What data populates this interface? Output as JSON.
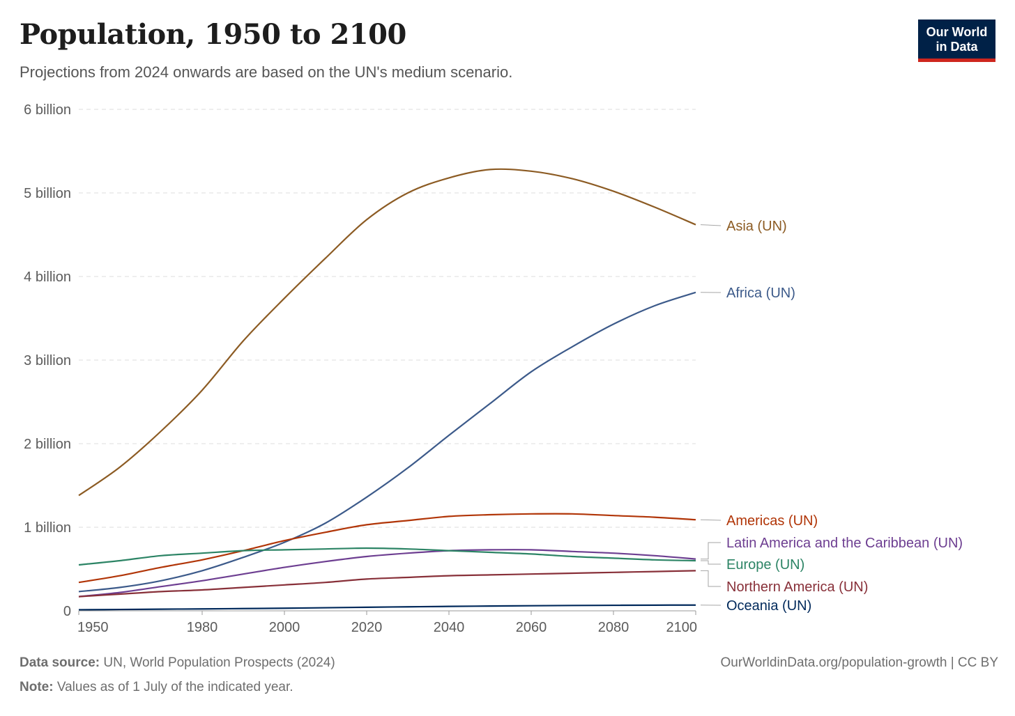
{
  "header": {
    "title": "Population, 1950 to 2100",
    "subtitle": "Projections from 2024 onwards are based on the UN's medium scenario.",
    "logo_line1": "Our World",
    "logo_line2": "in Data"
  },
  "footer": {
    "source_label": "Data source:",
    "source_text": "UN, World Population Prospects (2024)",
    "note_label": "Note:",
    "note_text": "Values as of 1 July of the indicated year.",
    "credit": "OurWorldinData.org/population-growth | CC BY"
  },
  "chart_data": {
    "type": "line",
    "title": "Population, 1950 to 2100",
    "subtitle": "Projections from 2024 onwards are based on the UN's medium scenario.",
    "xlim": [
      1950,
      2100
    ],
    "ylim": [
      0,
      6000000000
    ],
    "x_ticks": [
      1950,
      1980,
      2000,
      2020,
      2040,
      2060,
      2080,
      2100
    ],
    "x_tick_labels": [
      "1950",
      "1980",
      "2000",
      "2020",
      "2040",
      "2060",
      "2080",
      "2100"
    ],
    "y_ticks": [
      0,
      1000000000,
      2000000000,
      3000000000,
      4000000000,
      5000000000,
      6000000000
    ],
    "y_tick_labels": [
      "0",
      "1 billion",
      "2 billion",
      "3 billion",
      "4 billion",
      "5 billion",
      "6 billion"
    ],
    "grid": "horizontal dashed",
    "legend": "right-side line labels",
    "x": [
      1950,
      1960,
      1970,
      1980,
      1990,
      2000,
      2010,
      2020,
      2030,
      2040,
      2050,
      2060,
      2070,
      2080,
      2090,
      2100
    ],
    "series": [
      {
        "name": "Asia (UN)",
        "color": "#8c5b23",
        "values": [
          1.38,
          1.72,
          2.15,
          2.64,
          3.23,
          3.74,
          4.22,
          4.68,
          5.0,
          5.18,
          5.28,
          5.26,
          5.17,
          5.02,
          4.83,
          4.62
        ]
      },
      {
        "name": "Africa (UN)",
        "color": "#3c5a8a",
        "values": [
          0.23,
          0.28,
          0.36,
          0.48,
          0.64,
          0.82,
          1.05,
          1.36,
          1.71,
          2.1,
          2.48,
          2.86,
          3.16,
          3.43,
          3.65,
          3.81
        ]
      },
      {
        "name": "Americas (UN)",
        "color": "#b13507",
        "values": [
          0.34,
          0.42,
          0.52,
          0.61,
          0.72,
          0.84,
          0.94,
          1.03,
          1.08,
          1.13,
          1.15,
          1.16,
          1.16,
          1.14,
          1.12,
          1.09
        ]
      },
      {
        "name": "Latin America and the Caribbean (UN)",
        "color": "#6d3e91",
        "values": [
          0.17,
          0.22,
          0.29,
          0.36,
          0.44,
          0.52,
          0.59,
          0.65,
          0.69,
          0.72,
          0.73,
          0.73,
          0.71,
          0.69,
          0.66,
          0.62
        ]
      },
      {
        "name": "Europe (UN)",
        "color": "#2c8465",
        "values": [
          0.55,
          0.6,
          0.66,
          0.69,
          0.72,
          0.73,
          0.74,
          0.75,
          0.74,
          0.72,
          0.7,
          0.68,
          0.65,
          0.63,
          0.61,
          0.6
        ]
      },
      {
        "name": "Northern America (UN)",
        "color": "#883039",
        "values": [
          0.17,
          0.2,
          0.23,
          0.25,
          0.28,
          0.31,
          0.34,
          0.38,
          0.4,
          0.42,
          0.43,
          0.44,
          0.45,
          0.46,
          0.47,
          0.48
        ]
      },
      {
        "name": "Oceania (UN)",
        "color": "#00295b",
        "values": [
          0.013,
          0.016,
          0.02,
          0.023,
          0.027,
          0.031,
          0.037,
          0.043,
          0.048,
          0.053,
          0.057,
          0.061,
          0.064,
          0.066,
          0.068,
          0.069
        ]
      }
    ],
    "value_unit": "billion"
  }
}
